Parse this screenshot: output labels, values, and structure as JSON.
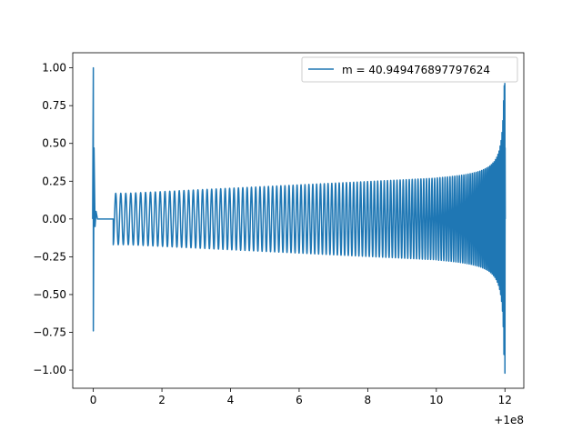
{
  "chart_data": {
    "type": "line",
    "title": "",
    "xlabel": "",
    "ylabel": "",
    "x_offset_label": "+1e8",
    "xlim": [
      -0.6,
      12.55
    ],
    "ylim": [
      -1.12,
      1.1
    ],
    "x_ticks": [
      0,
      2,
      4,
      6,
      8,
      10,
      12
    ],
    "x_tick_labels": [
      "0",
      "2",
      "4",
      "6",
      "8",
      "10",
      "12"
    ],
    "y_ticks": [
      -1.0,
      -0.75,
      -0.5,
      -0.25,
      0.0,
      0.25,
      0.5,
      0.75,
      1.0
    ],
    "y_tick_labels": [
      "−1.00",
      "−0.75",
      "−0.50",
      "−0.25",
      "0.00",
      "0.25",
      "0.50",
      "0.75",
      "1.00"
    ],
    "grid": false,
    "legend_position": "upper right",
    "series": [
      {
        "name": "m = 40.949476897797624",
        "color": "#1f77b4",
        "description_points": {
          "x": [
            0.0,
            0.0,
            0.0,
            0.05,
            0.1,
            0.2,
            0.5,
            0.6,
            0.6,
            0.7,
            2.0,
            4.0,
            6.0,
            8.0,
            10.0,
            11.0,
            11.5,
            11.8,
            12.0,
            12.0
          ],
          "y_envelope": [
            1.0,
            -0.74,
            0.47,
            0.05,
            0.0,
            0.0,
            0.0,
            -0.17,
            0.17,
            0.17,
            0.175,
            0.18,
            0.2,
            0.22,
            0.27,
            0.33,
            0.4,
            0.55,
            0.88,
            -1.02
          ]
        }
      }
    ]
  }
}
